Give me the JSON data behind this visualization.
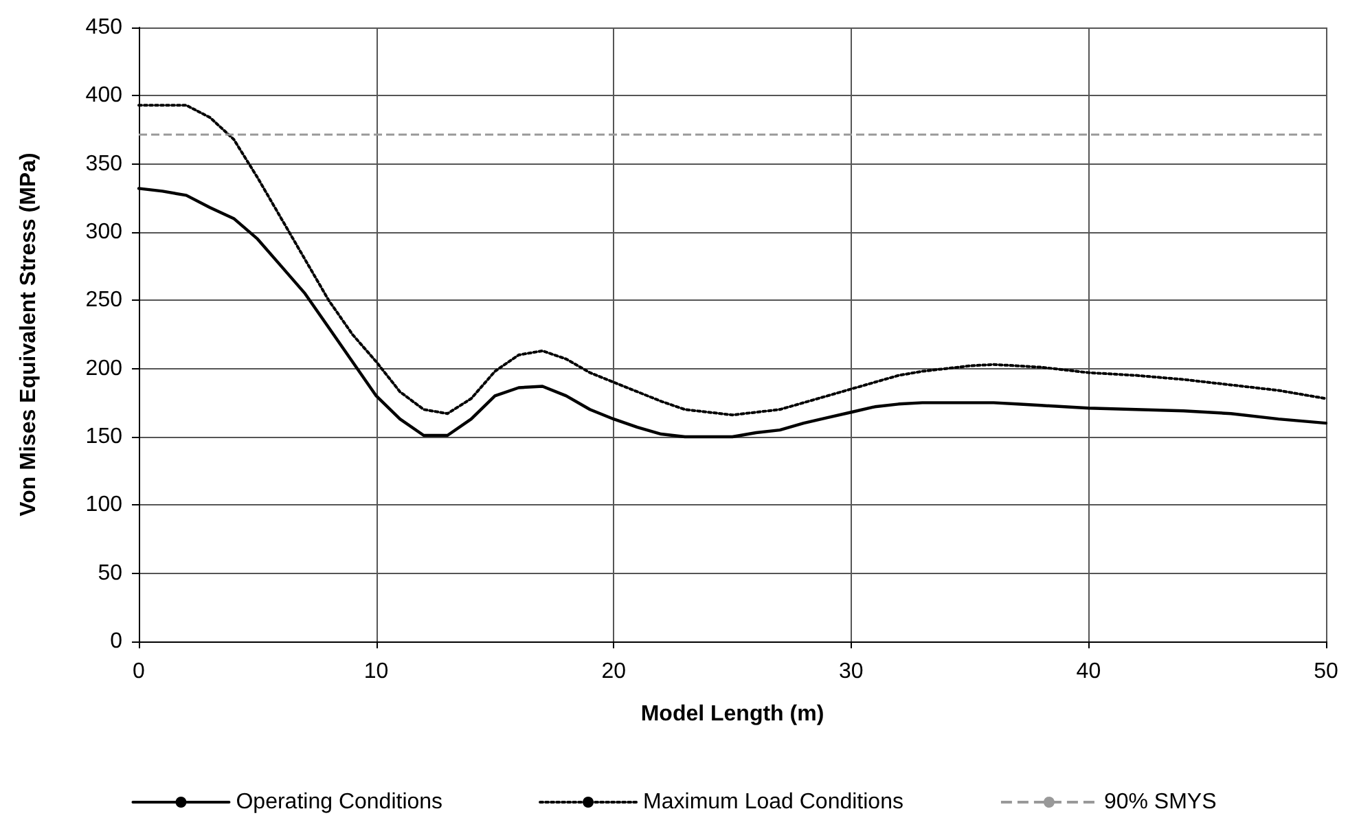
{
  "chart_data": {
    "type": "line",
    "xlabel": "Model Length (m)",
    "ylabel": "Von Mises Equivalent Stress (MPa)",
    "xlim": [
      0,
      50
    ],
    "xticks": [
      0,
      10,
      20,
      30,
      40,
      50
    ],
    "ylim": [
      0,
      450
    ],
    "yticks": [
      0,
      50,
      100,
      150,
      200,
      250,
      300,
      350,
      400,
      450
    ],
    "grid": true,
    "legend": "bottom",
    "marker": "none",
    "series": [
      {
        "name": "Operating Conditions",
        "color": "#000000",
        "line_style": "solid",
        "x": [
          0,
          1,
          2,
          3,
          4,
          5,
          6,
          7,
          8,
          9,
          10,
          11,
          12,
          13,
          14,
          15,
          16,
          17,
          18,
          19,
          20,
          21,
          22,
          23,
          24,
          25,
          26,
          27,
          28,
          29,
          30,
          31,
          32,
          33,
          34,
          35,
          36,
          37,
          38,
          39,
          40,
          42,
          44,
          46,
          48,
          50
        ],
        "values": [
          332,
          330,
          327,
          318,
          310,
          295,
          275,
          255,
          230,
          205,
          180,
          163,
          151,
          151,
          163,
          180,
          186,
          187,
          180,
          170,
          163,
          157,
          152,
          150,
          150,
          150,
          153,
          155,
          160,
          164,
          168,
          172,
          174,
          175,
          175,
          175,
          175,
          174,
          173,
          172,
          171,
          170,
          169,
          167,
          163,
          160
        ]
      },
      {
        "name": "Maximum Load Conditions",
        "color": "#000000",
        "line_style": "dotted",
        "x": [
          0,
          2,
          3,
          4,
          5,
          6,
          7,
          8,
          9,
          10,
          11,
          12,
          13,
          14,
          15,
          16,
          17,
          18,
          19,
          20,
          21,
          22,
          23,
          24,
          25,
          26,
          27,
          28,
          29,
          30,
          31,
          32,
          33,
          34,
          35,
          36,
          37,
          38,
          39,
          40,
          42,
          44,
          46,
          48,
          50
        ],
        "values": [
          393,
          393,
          384,
          368,
          340,
          310,
          280,
          250,
          225,
          205,
          183,
          170,
          167,
          178,
          198,
          210,
          213,
          207,
          197,
          190,
          183,
          176,
          170,
          168,
          166,
          168,
          170,
          175,
          180,
          185,
          190,
          195,
          198,
          200,
          202,
          203,
          202,
          201,
          199,
          197,
          195,
          192,
          188,
          184,
          178
        ]
      }
    ],
    "ref_lines": [
      {
        "axis": "y",
        "value": 372,
        "label": "90% SMYS",
        "color": "#999999",
        "line_style": "dashed"
      }
    ]
  }
}
